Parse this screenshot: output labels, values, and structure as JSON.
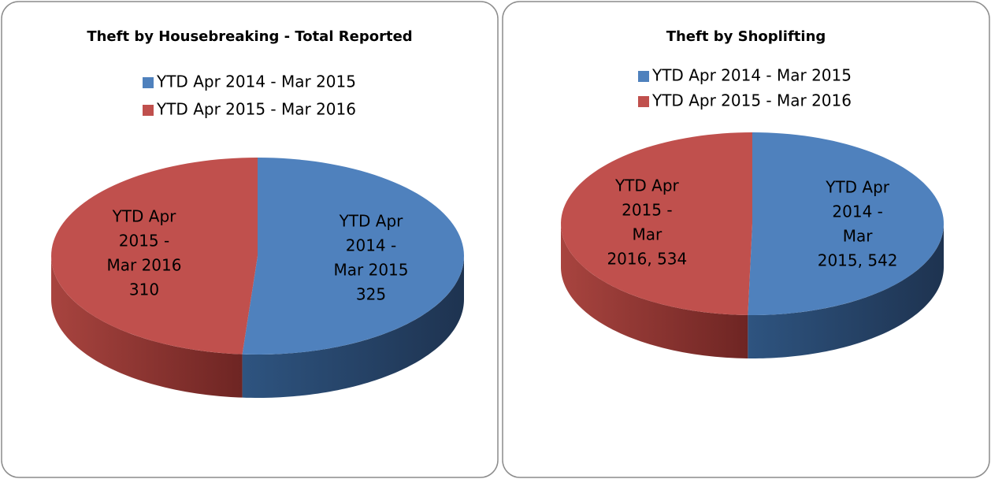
{
  "chart_data": [
    {
      "type": "pie",
      "title": "Theft by Housebreaking - Total Reported",
      "categories": [
        "YTD Apr 2014 - Mar 2015",
        "YTD Apr 2015 - Mar 2016"
      ],
      "values": [
        325,
        310
      ],
      "colors": [
        "#4f81bd",
        "#c0504d"
      ]
    },
    {
      "type": "pie",
      "title": "Theft by Shoplifting",
      "categories": [
        "YTD Apr 2014 - Mar 2015",
        "YTD Apr 2015 - Mar 2016"
      ],
      "values": [
        542,
        534
      ],
      "colors": [
        "#4f81bd",
        "#c0504d"
      ],
      "label_separator": ", "
    }
  ]
}
